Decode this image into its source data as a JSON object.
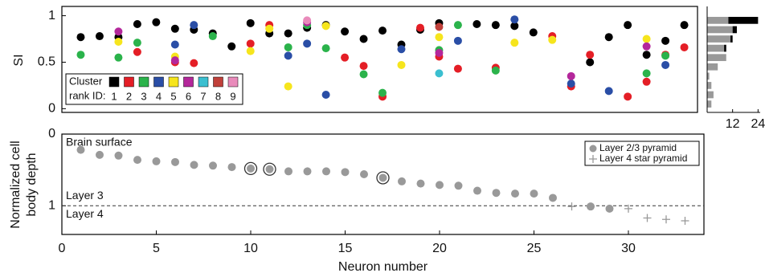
{
  "chart_data": [
    {
      "type": "scatter",
      "ylabel": "SI",
      "xlim": [
        0,
        33.7
      ],
      "ylim": [
        -0.04,
        1.1
      ],
      "yticks": [
        0,
        0.5,
        1
      ],
      "legend_title": [
        "Cluster",
        "rank ID:"
      ],
      "legend": "lower left",
      "series": [
        {
          "name": "1",
          "color": "#000000",
          "x": [
            1,
            2,
            3,
            4,
            5,
            6,
            7,
            8,
            9,
            10,
            11,
            12,
            13,
            14,
            15,
            16,
            17,
            18,
            19,
            20,
            22,
            23,
            24,
            25,
            28,
            29,
            30,
            31,
            32,
            33
          ],
          "values": [
            0.77,
            0.78,
            0.77,
            0.91,
            0.93,
            0.86,
            0.85,
            0.81,
            0.67,
            0.92,
            0.81,
            0.81,
            0.87,
            0.9,
            0.83,
            0.75,
            0.84,
            0.69,
            0.85,
            0.92,
            0.91,
            0.9,
            0.89,
            0.82,
            0.5,
            0.77,
            0.9,
            0.58,
            0.73,
            0.9
          ]
        },
        {
          "name": "2",
          "color": "#e41e26",
          "x": [
            4,
            6,
            7,
            10,
            11,
            15,
            16,
            17,
            19,
            20,
            21,
            23,
            26,
            27,
            28,
            30,
            31,
            32,
            33
          ],
          "values": [
            0.61,
            0.5,
            0.49,
            0.7,
            0.9,
            0.55,
            0.46,
            0.13,
            0.87,
            0.56,
            0.43,
            0.44,
            0.78,
            0.24,
            0.58,
            0.13,
            0.29,
            0.58,
            0.66
          ]
        },
        {
          "name": "3",
          "color": "#2bb34b",
          "x": [
            1,
            3,
            4,
            8,
            12,
            13,
            14,
            16,
            17,
            20,
            21,
            23,
            31,
            32
          ],
          "values": [
            0.58,
            0.55,
            0.71,
            0.78,
            0.66,
            0.9,
            0.65,
            0.37,
            0.17,
            0.63,
            0.9,
            0.41,
            0.38,
            0.57
          ]
        },
        {
          "name": "4",
          "color": "#2a4ea6",
          "x": [
            6,
            7,
            12,
            13,
            14,
            18,
            21,
            24,
            27,
            29,
            32
          ],
          "values": [
            0.69,
            0.9,
            0.57,
            0.7,
            0.15,
            0.64,
            0.73,
            0.96,
            0.27,
            0.19,
            0.47
          ]
        },
        {
          "name": "5",
          "color": "#f6e51d",
          "x": [
            3,
            6,
            10,
            11,
            12,
            14,
            18,
            20,
            24,
            26,
            31
          ],
          "values": [
            0.72,
            0.56,
            0.62,
            0.86,
            0.24,
            0.89,
            0.47,
            0.77,
            0.71,
            0.74,
            0.75
          ]
        },
        {
          "name": "6",
          "color": "#b4279b",
          "x": [
            3,
            6,
            13,
            20,
            27,
            31
          ],
          "values": [
            0.83,
            0.52,
            0.93,
            0.6,
            0.35,
            0.67
          ]
        },
        {
          "name": "7",
          "color": "#3bbfd0",
          "x": [
            20
          ],
          "values": [
            0.38
          ]
        },
        {
          "name": "8",
          "color": "#c0403a",
          "x": [
            20
          ],
          "values": [
            0.88
          ]
        },
        {
          "name": "9",
          "color": "#e98bbb",
          "x": [
            13
          ],
          "values": [
            0.95
          ]
        }
      ]
    },
    {
      "type": "histogram",
      "orientation": "horizontal",
      "bins": [
        0,
        0.1,
        0.2,
        0.3,
        0.4,
        0.5,
        0.6,
        0.7,
        0.8,
        0.9,
        1.0
      ],
      "ylim": [
        -0.04,
        1.1
      ],
      "xlim": [
        0,
        25
      ],
      "xticks": [
        12,
        24
      ],
      "series": [
        {
          "color": "#999999",
          "values": [
            2,
            3,
            2,
            1,
            5,
            9,
            8,
            11,
            12,
            10
          ]
        },
        {
          "color": "#000000",
          "values": [
            0,
            0,
            0,
            0,
            0,
            0,
            1,
            1,
            2,
            14
          ]
        }
      ]
    },
    {
      "type": "scatter",
      "xlabel": "Neuron number",
      "ylabel": [
        "Normalized cell",
        "body depth"
      ],
      "xlim": [
        0,
        34
      ],
      "xticks": [
        0,
        5,
        10,
        15,
        20,
        25,
        30
      ],
      "ylim": [
        0,
        1.4
      ],
      "y_inverted": true,
      "yticks": [
        0,
        1
      ],
      "annotation": "Brain surface",
      "hline": {
        "value": 1,
        "above": "Layer 3",
        "below": "Layer 4"
      },
      "highlight_x": [
        10,
        11,
        17
      ],
      "legend": "upper right",
      "series": [
        {
          "name": "Layer 2/3 pyramid",
          "color": "#999999",
          "marker": "circle",
          "x": [
            1,
            2,
            3,
            4,
            5,
            6,
            7,
            8,
            9,
            10,
            11,
            12,
            13,
            14,
            15,
            16,
            17,
            18,
            19,
            20,
            21,
            22,
            23,
            24,
            25,
            26,
            28,
            29
          ],
          "values": [
            0.22,
            0.29,
            0.3,
            0.36,
            0.38,
            0.39,
            0.43,
            0.44,
            0.46,
            0.48,
            0.49,
            0.52,
            0.52,
            0.52,
            0.53,
            0.56,
            0.61,
            0.66,
            0.69,
            0.71,
            0.72,
            0.79,
            0.82,
            0.83,
            0.83,
            0.89,
            1.01,
            1.04
          ]
        },
        {
          "name": "Layer 4 star pyramid",
          "color": "#999999",
          "marker": "plus",
          "x": [
            27,
            30,
            31,
            32,
            33
          ],
          "values": [
            1.01,
            1.04,
            1.17,
            1.19,
            1.21
          ]
        }
      ]
    }
  ]
}
